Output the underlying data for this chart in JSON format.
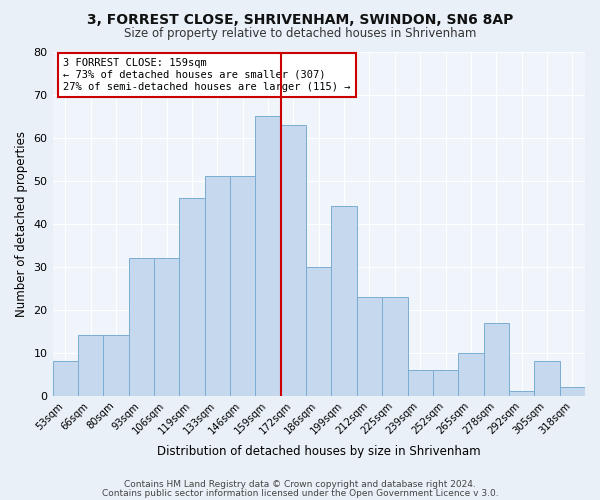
{
  "title": "3, FORREST CLOSE, SHRIVENHAM, SWINDON, SN6 8AP",
  "subtitle": "Size of property relative to detached houses in Shrivenham",
  "xlabel": "Distribution of detached houses by size in Shrivenham",
  "ylabel": "Number of detached properties",
  "x_labels": [
    "53sqm",
    "66sqm",
    "80sqm",
    "93sqm",
    "106sqm",
    "119sqm",
    "133sqm",
    "146sqm",
    "159sqm",
    "172sqm",
    "186sqm",
    "199sqm",
    "212sqm",
    "225sqm",
    "239sqm",
    "252sqm",
    "265sqm",
    "278sqm",
    "292sqm",
    "305sqm",
    "318sqm"
  ],
  "bar_heights": [
    8,
    14,
    14,
    32,
    32,
    46,
    51,
    51,
    65,
    63,
    30,
    44,
    23,
    23,
    6,
    6,
    10,
    17,
    1,
    8,
    2
  ],
  "bar_color": "#c5d8ed",
  "bar_edge_color": "#7aadd4",
  "vline_after_index": 8,
  "vline_color": "#cc0000",
  "annotation_box_color": "#cc0000",
  "annotation_lines": [
    "3 FORREST CLOSE: 159sqm",
    "← 73% of detached houses are smaller (307)",
    "27% of semi-detached houses are larger (115) →"
  ],
  "ylim": [
    0,
    80
  ],
  "yticks": [
    0,
    10,
    20,
    30,
    40,
    50,
    60,
    70,
    80
  ],
  "footer1": "Contains HM Land Registry data © Crown copyright and database right 2024.",
  "footer2": "Contains public sector information licensed under the Open Government Licence v 3.0.",
  "bg_color": "#eaf0f8",
  "plot_bg_color": "#f0f5fb",
  "grid_color": "#ffffff"
}
